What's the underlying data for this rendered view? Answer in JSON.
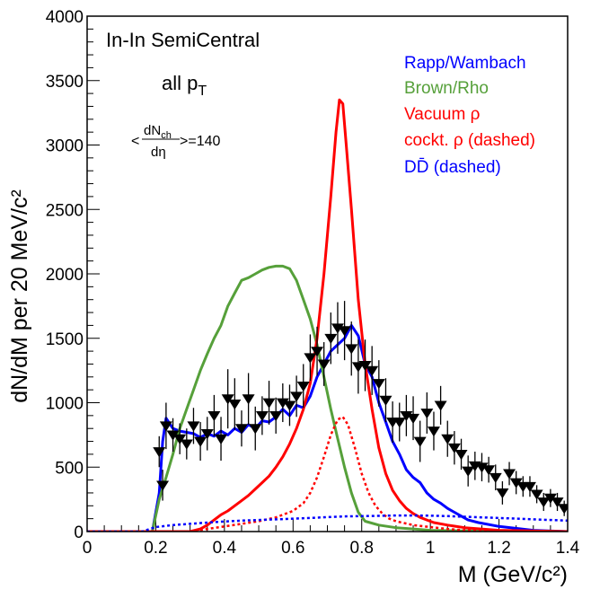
{
  "chart_data": {
    "type": "line",
    "title": "",
    "xlabel": "M (GeV/c²)",
    "ylabel": "dN/dM per 20 MeV/c²",
    "xlim": [
      0,
      1.4
    ],
    "ylim": [
      0,
      4000
    ],
    "x_ticks": [
      0,
      0.2,
      0.4,
      0.6,
      0.8,
      1,
      1.2,
      1.4
    ],
    "x_tick_labels": [
      "0",
      "0.2",
      "0.4",
      "0.6",
      "0.8",
      "1",
      "1.2",
      "1.4"
    ],
    "y_ticks": [
      0,
      500,
      1000,
      1500,
      2000,
      2500,
      3000,
      3500,
      4000
    ],
    "y_tick_labels": [
      "0",
      "500",
      "1000",
      "1500",
      "2000",
      "2500",
      "3000",
      "3500",
      "4000"
    ],
    "grid": false,
    "annotations": {
      "system": "In-In SemiCentral",
      "pt_main": "all p",
      "pt_sub": "T",
      "mult_lt": "<",
      "mult_num": "dN",
      "mult_num_sub": "ch",
      "mult_den": "dη",
      "mult_value": ">=140"
    },
    "legend_position": "top-right",
    "series": [
      {
        "name": "Rapp/Wambach",
        "color": "#0000ff",
        "dashed": false,
        "x": [
          0.0,
          0.19,
          0.21,
          0.22,
          0.23,
          0.25,
          0.27,
          0.29,
          0.31,
          0.33,
          0.35,
          0.37,
          0.39,
          0.41,
          0.43,
          0.45,
          0.47,
          0.49,
          0.51,
          0.53,
          0.55,
          0.57,
          0.59,
          0.61,
          0.63,
          0.65,
          0.67,
          0.69,
          0.71,
          0.73,
          0.75,
          0.77,
          0.79,
          0.81,
          0.83,
          0.85,
          0.87,
          0.89,
          0.91,
          0.93,
          0.95,
          0.97,
          0.99,
          1.01,
          1.03,
          1.05,
          1.07,
          1.09,
          1.11,
          1.14,
          1.2,
          1.3,
          1.4
        ],
        "y": [
          0,
          0,
          300,
          700,
          880,
          800,
          780,
          770,
          760,
          730,
          760,
          740,
          780,
          750,
          800,
          770,
          830,
          800,
          860,
          850,
          890,
          950,
          900,
          980,
          960,
          1050,
          1200,
          1300,
          1400,
          1450,
          1500,
          1600,
          1520,
          1300,
          1200,
          1000,
          850,
          700,
          600,
          480,
          420,
          380,
          300,
          250,
          220,
          180,
          150,
          120,
          90,
          70,
          40,
          10,
          0
        ]
      },
      {
        "name": "Brown/Rho",
        "color": "#56a03a",
        "dashed": false,
        "x": [
          0.0,
          0.19,
          0.21,
          0.23,
          0.25,
          0.27,
          0.29,
          0.31,
          0.33,
          0.35,
          0.37,
          0.39,
          0.41,
          0.43,
          0.45,
          0.47,
          0.49,
          0.51,
          0.53,
          0.55,
          0.57,
          0.59,
          0.61,
          0.63,
          0.65,
          0.67,
          0.69,
          0.71,
          0.73,
          0.75,
          0.77,
          0.79,
          0.81,
          0.85,
          0.9,
          0.95,
          1.0,
          1.1,
          1.4
        ],
        "y": [
          0,
          0,
          250,
          420,
          600,
          800,
          950,
          1100,
          1250,
          1380,
          1500,
          1600,
          1750,
          1850,
          1950,
          1970,
          2000,
          2030,
          2050,
          2060,
          2060,
          2040,
          1950,
          1800,
          1650,
          1450,
          1200,
          950,
          720,
          500,
          300,
          150,
          80,
          50,
          30,
          20,
          10,
          5,
          0
        ]
      },
      {
        "name": "Vacuum ρ",
        "color": "#ff0000",
        "dashed": false,
        "x": [
          0.0,
          0.3,
          0.33,
          0.35,
          0.37,
          0.39,
          0.41,
          0.43,
          0.45,
          0.47,
          0.49,
          0.51,
          0.53,
          0.55,
          0.57,
          0.59,
          0.61,
          0.63,
          0.65,
          0.67,
          0.69,
          0.71,
          0.725,
          0.735,
          0.745,
          0.755,
          0.77,
          0.79,
          0.81,
          0.83,
          0.85,
          0.87,
          0.89,
          0.91,
          0.93,
          0.95,
          0.97,
          0.99,
          1.01,
          1.05,
          1.1,
          1.2,
          1.4
        ],
        "y": [
          0,
          0,
          20,
          50,
          90,
          130,
          160,
          200,
          240,
          280,
          330,
          380,
          430,
          500,
          580,
          680,
          800,
          950,
          1150,
          1500,
          2000,
          2600,
          3100,
          3350,
          3320,
          3000,
          2500,
          1800,
          1300,
          950,
          650,
          450,
          320,
          240,
          180,
          140,
          110,
          90,
          70,
          50,
          30,
          10,
          0
        ]
      },
      {
        "name": "cockt. ρ  (dashed)",
        "color": "#ff0000",
        "dashed": true,
        "x": [
          0.0,
          0.3,
          0.35,
          0.4,
          0.45,
          0.5,
          0.55,
          0.6,
          0.63,
          0.65,
          0.67,
          0.69,
          0.71,
          0.73,
          0.745,
          0.76,
          0.78,
          0.8,
          0.82,
          0.84,
          0.86,
          0.88,
          0.9,
          0.95,
          1.0,
          1.05,
          1.1,
          1.2,
          1.4
        ],
        "y": [
          0,
          0,
          20,
          40,
          60,
          80,
          110,
          160,
          220,
          300,
          420,
          580,
          750,
          870,
          890,
          830,
          650,
          450,
          300,
          200,
          140,
          100,
          80,
          50,
          35,
          20,
          10,
          5,
          0
        ]
      },
      {
        "name": "DD̄ (dashed)",
        "color": "#0000ff",
        "dashed": true,
        "x": [
          0.0,
          0.16,
          0.2,
          0.25,
          0.3,
          0.35,
          0.4,
          0.45,
          0.5,
          0.55,
          0.6,
          0.65,
          0.7,
          0.75,
          0.8,
          0.85,
          0.9,
          0.95,
          1.0,
          1.05,
          1.1,
          1.15,
          1.2,
          1.25,
          1.3,
          1.35,
          1.4
        ],
        "y": [
          0,
          0,
          35,
          50,
          60,
          70,
          78,
          85,
          90,
          95,
          100,
          105,
          112,
          118,
          120,
          122,
          125,
          125,
          123,
          120,
          115,
          110,
          105,
          100,
          95,
          90,
          85
        ]
      }
    ],
    "measured": {
      "x": [
        0.21,
        0.22,
        0.23,
        0.25,
        0.27,
        0.29,
        0.31,
        0.33,
        0.35,
        0.37,
        0.39,
        0.41,
        0.43,
        0.45,
        0.47,
        0.49,
        0.51,
        0.53,
        0.55,
        0.57,
        0.59,
        0.61,
        0.63,
        0.65,
        0.67,
        0.69,
        0.71,
        0.73,
        0.75,
        0.77,
        0.79,
        0.81,
        0.83,
        0.85,
        0.87,
        0.89,
        0.91,
        0.93,
        0.95,
        0.97,
        0.99,
        1.01,
        1.03,
        1.05,
        1.07,
        1.09,
        1.11,
        1.13,
        1.15,
        1.17,
        1.19,
        1.21,
        1.23,
        1.25,
        1.27,
        1.29,
        1.31,
        1.33,
        1.35,
        1.37,
        1.39
      ],
      "y": [
        620,
        360,
        820,
        750,
        720,
        680,
        820,
        700,
        760,
        900,
        720,
        1030,
        990,
        800,
        1030,
        800,
        900,
        1000,
        900,
        1000,
        980,
        1050,
        1130,
        1350,
        1400,
        1300,
        1500,
        1580,
        1560,
        1420,
        1280,
        1290,
        1250,
        1150,
        1020,
        850,
        850,
        900,
        880,
        700,
        920,
        780,
        980,
        720,
        650,
        600,
        470,
        510,
        500,
        480,
        420,
        300,
        450,
        380,
        350,
        350,
        290,
        230,
        260,
        230,
        180
      ],
      "yerr": [
        120,
        120,
        180,
        130,
        120,
        120,
        140,
        150,
        130,
        160,
        170,
        230,
        200,
        140,
        200,
        170,
        150,
        170,
        140,
        150,
        160,
        160,
        170,
        180,
        190,
        170,
        200,
        200,
        230,
        210,
        210,
        200,
        190,
        180,
        170,
        160,
        150,
        160,
        170,
        160,
        160,
        150,
        150,
        140,
        130,
        120,
        120,
        110,
        110,
        100,
        100,
        90,
        90,
        90,
        80,
        80,
        70,
        70,
        70,
        70,
        60
      ]
    }
  }
}
